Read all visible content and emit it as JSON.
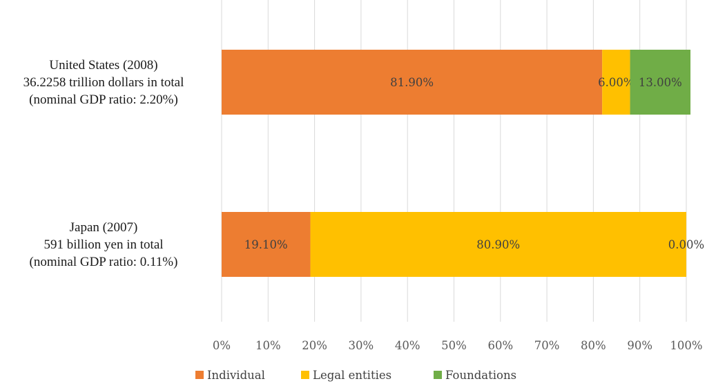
{
  "chart_data": {
    "type": "bar",
    "orientation": "horizontal",
    "stacked": "percent",
    "title": "",
    "xlabel": "",
    "ylabel": "",
    "xlim": [
      0,
      100
    ],
    "grid": true,
    "legend_position": "bottom",
    "ticks": [
      "0%",
      "10%",
      "20%",
      "30%",
      "40%",
      "50%",
      "60%",
      "70%",
      "80%",
      "90%",
      "100%"
    ],
    "categories": [
      {
        "lines": [
          "United States (2008)",
          "36.2258 trillion dollars in total",
          "(nominal GDP ratio: 2.20%)"
        ]
      },
      {
        "lines": [
          "Japan (2007)",
          "591 billion yen in total",
          "(nominal GDP ratio: 0.11%)"
        ]
      }
    ],
    "series": [
      {
        "name": "Individual",
        "color": "#ed7d31",
        "values": [
          81.9,
          19.1
        ],
        "labels": [
          "81.90%",
          "19.10%"
        ]
      },
      {
        "name": "Legal entities",
        "color": "#ffc000",
        "values": [
          6.0,
          80.9
        ],
        "labels": [
          "6.00%",
          "80.90%"
        ]
      },
      {
        "name": "Foundations",
        "color": "#70ad47",
        "values": [
          13.0,
          0.0
        ],
        "labels": [
          "13.00%",
          "0.00%"
        ]
      }
    ]
  }
}
